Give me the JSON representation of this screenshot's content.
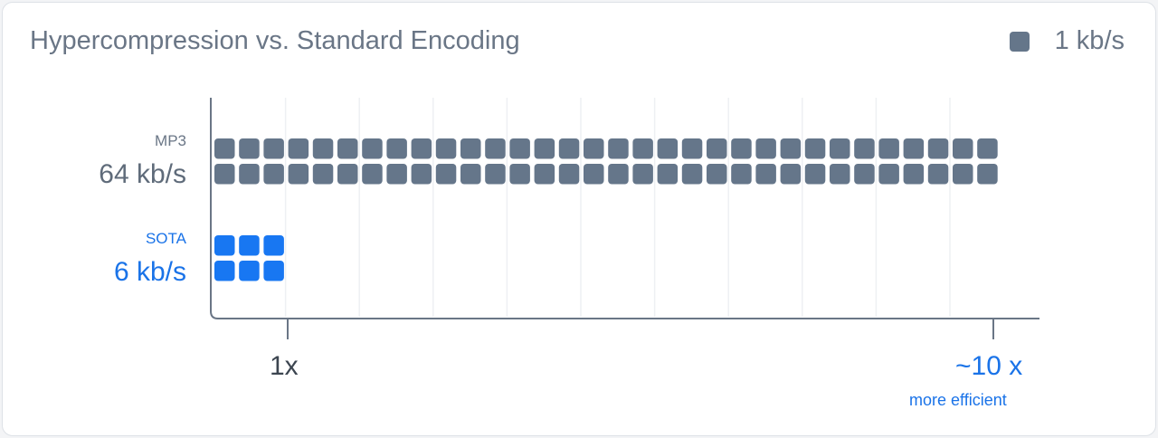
{
  "chart_data": {
    "type": "waffle",
    "title": "Hypercompression vs. Standard Encoding",
    "legend": {
      "label": "1 kb/s",
      "unit_value": 1,
      "placement": "top-right"
    },
    "series": [
      {
        "name": "MP3",
        "value_label": "64 kb/s",
        "value": 64,
        "rows": 2,
        "color": "#65768a"
      },
      {
        "name": "SOTA",
        "value_label": "6 kb/s",
        "value": 6,
        "rows": 2,
        "color": "#1877f2"
      }
    ],
    "x_ticks": [
      {
        "label": "1x",
        "color": "#3c4550"
      },
      {
        "label": "~10 x",
        "sublabel": "more efficient",
        "color": "#1a73e8"
      }
    ],
    "grid": true
  }
}
